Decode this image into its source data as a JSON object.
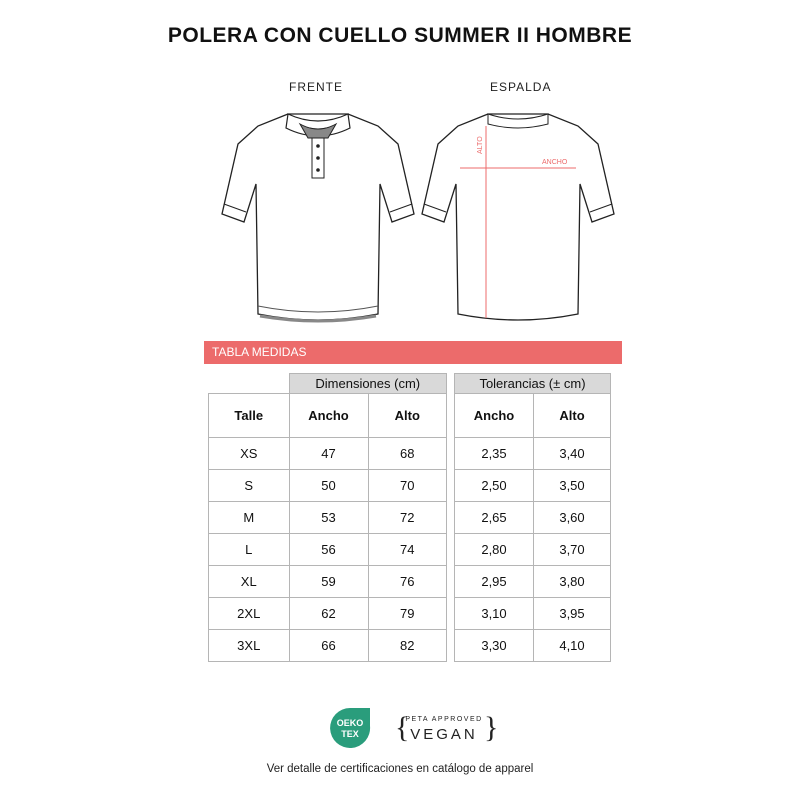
{
  "title": "POLERA CON CUELLO SUMMER II HOMBRE",
  "views": {
    "front": "FRENTE",
    "back": "ESPALDA"
  },
  "annotations": {
    "height": "ALTO",
    "width": "ANCHO"
  },
  "section_title": "TABLA MEDIDAS",
  "table": {
    "dimensions_header": "Dimensiones (cm)",
    "tolerances_header": "Tolerancias (± cm)",
    "columns": [
      "Talle",
      "Ancho",
      "Alto",
      "Ancho",
      "Alto"
    ],
    "rows": [
      [
        "XS",
        "47",
        "68",
        "2,35",
        "3,40"
      ],
      [
        "S",
        "50",
        "70",
        "2,50",
        "3,50"
      ],
      [
        "M",
        "53",
        "72",
        "2,65",
        "3,60"
      ],
      [
        "L",
        "56",
        "74",
        "2,80",
        "3,70"
      ],
      [
        "XL",
        "59",
        "76",
        "2,95",
        "3,80"
      ],
      [
        "2XL",
        "62",
        "79",
        "3,10",
        "3,95"
      ],
      [
        "3XL",
        "66",
        "82",
        "3,30",
        "4,10"
      ]
    ]
  },
  "certifications": {
    "oeko_tex": "OEKO TEX",
    "peta": "PETA APPROVED VEGAN"
  },
  "footer": "Ver detalle de certificaciones en catálogo de apparel",
  "colors": {
    "accent": "#ec6b6b",
    "header_gray": "#d9d9d9",
    "oeko_green": "#2a9d7c"
  }
}
